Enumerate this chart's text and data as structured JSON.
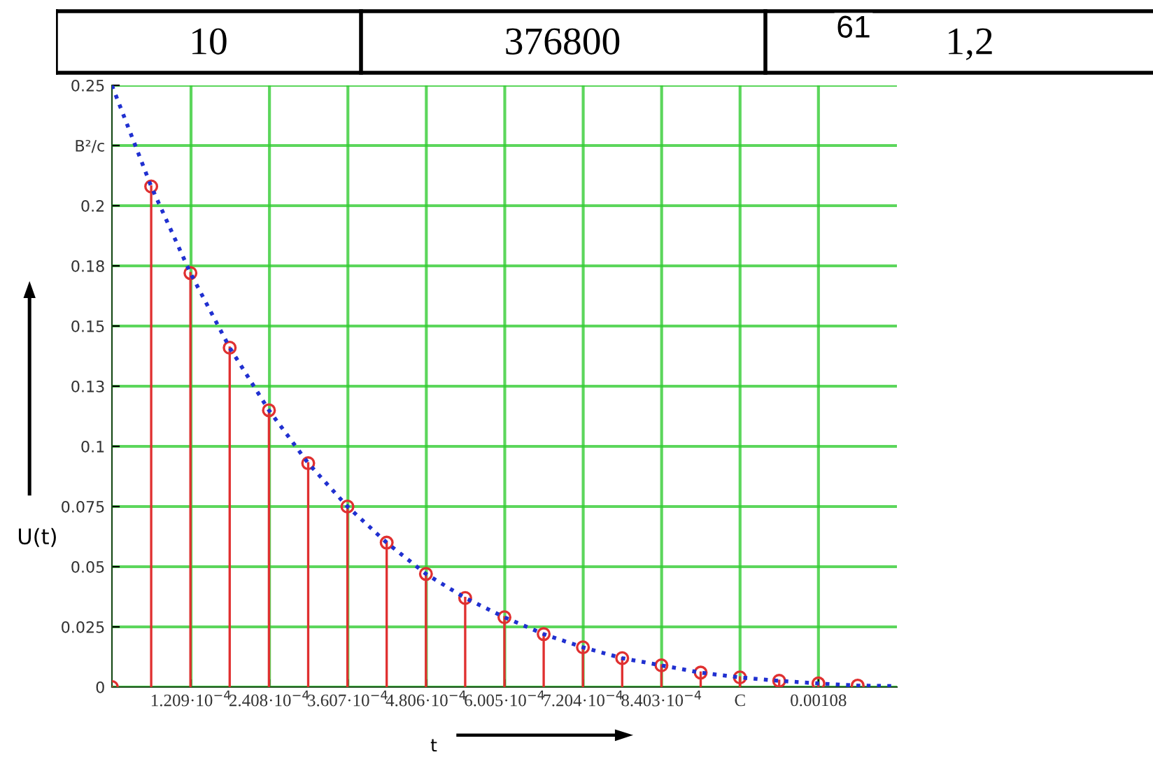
{
  "chart_data": {
    "type": "lollipop",
    "xlabel": "t",
    "ylabel": "U(t)",
    "annotations": [
      "10",
      "376800",
      "61",
      "1,2"
    ],
    "xlim": [
      0,
      0.0012
    ],
    "ylim": [
      0,
      0.25
    ],
    "xticks": [
      {
        "value": 0.0001209,
        "label": "1.209·10$^{−4}$"
      },
      {
        "value": 0.0002408,
        "label": "2.408·10$^{−4}$"
      },
      {
        "value": 0.0003607,
        "label": "3.607·10$^{−4}$"
      },
      {
        "value": 0.0004806,
        "label": "4.806·10$^{−4}$"
      },
      {
        "value": 0.0006005,
        "label": "6.005·10$^{−4}$"
      },
      {
        "value": 0.0007204,
        "label": "7.204·10$^{−4}$"
      },
      {
        "value": 0.0008403,
        "label": "8.403·10$^{−4}$"
      },
      {
        "value": 0.0009602,
        "label": "C"
      },
      0.00108
    ],
    "yticks": [
      0,
      0.025,
      0.05,
      0.075,
      0.1,
      {
        "value": 0.125,
        "label": "0.13"
      },
      0.15,
      {
        "value": 0.175,
        "label": "0.18"
      },
      0.2,
      {
        "value": 0.225,
        "label": "B²/c"
      },
      0.25
    ],
    "grid": true,
    "series": [
      {
        "color": "#e03030",
        "marker": "circle",
        "x": [
          0,
          6e-05,
          0.00012,
          0.00018,
          0.00024,
          0.0003,
          0.00036,
          0.00042,
          0.00048,
          0.00054,
          0.0006,
          0.00066,
          0.00072,
          0.00078,
          0.00084,
          0.0009,
          0.00096,
          0.00102,
          0.00108,
          0.00114
        ],
        "values": [
          0,
          0.208,
          0.172,
          0.141,
          0.115,
          0.093,
          0.075,
          0.06,
          0.047,
          0.037,
          0.029,
          0.022,
          0.0165,
          0.012,
          0.009,
          0.006,
          0.004,
          0.0026,
          0.0015,
          0.0006
        ]
      },
      {
        "type": "line",
        "color": "#2030d0",
        "marker": "none",
        "line_style": "dotted",
        "x": [
          0,
          6e-05,
          0.00012,
          0.00018,
          0.00024,
          0.0003,
          0.00036,
          0.00042,
          0.00048,
          0.00054,
          0.0006,
          0.00066,
          0.00072,
          0.00078,
          0.00084,
          0.0009,
          0.00096,
          0.00102,
          0.00108,
          0.00114,
          0.0012
        ],
        "values": [
          0.25,
          0.208,
          0.172,
          0.141,
          0.115,
          0.093,
          0.075,
          0.06,
          0.047,
          0.037,
          0.029,
          0.022,
          0.0165,
          0.012,
          0.009,
          0.006,
          0.004,
          0.0026,
          0.0015,
          0.0006,
          0.0004
        ]
      }
    ]
  }
}
